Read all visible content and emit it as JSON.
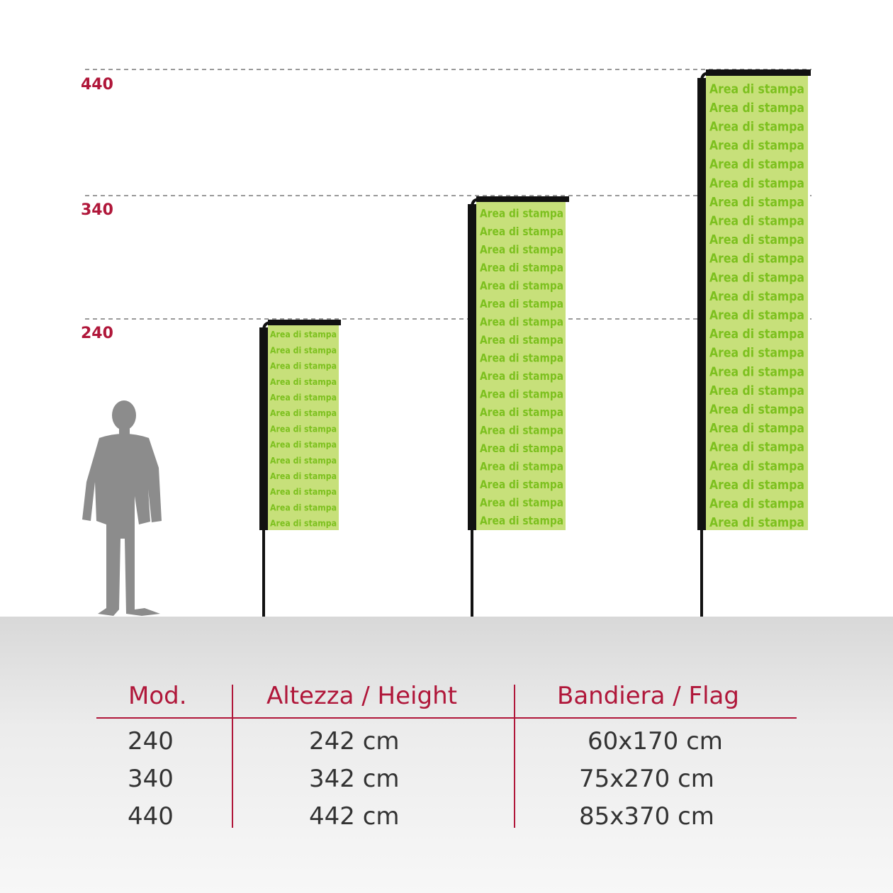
{
  "levels": [
    {
      "label": "440",
      "value": 440
    },
    {
      "label": "340",
      "value": 340
    },
    {
      "label": "240",
      "value": 240
    }
  ],
  "flag_print_text": "Area di stampa",
  "flags": [
    {
      "model": 240,
      "height_cm": 242,
      "flag_width_cm": 60,
      "flag_height_cm": 170
    },
    {
      "model": 340,
      "height_cm": 342,
      "flag_width_cm": 75,
      "flag_height_cm": 270
    },
    {
      "model": 440,
      "height_cm": 442,
      "flag_width_cm": 85,
      "flag_height_cm": 370
    }
  ],
  "colors": {
    "accent": "#b0173a",
    "flag_fill": "#c7e07a",
    "flag_text": "#7cc01e",
    "pole": "#111111",
    "person": "#8c8c8c"
  },
  "person_icon": "person-silhouette-icon",
  "table": {
    "headers": {
      "model": "Mod.",
      "height": "Altezza / Height",
      "flag": "Bandiera / Flag"
    },
    "rows": [
      {
        "model": "240",
        "height": "242 cm",
        "flag": "60x170 cm"
      },
      {
        "model": "340",
        "height": "342 cm",
        "flag": "75x270 cm"
      },
      {
        "model": "440",
        "height": "442 cm",
        "flag": "85x370 cm"
      }
    ]
  }
}
